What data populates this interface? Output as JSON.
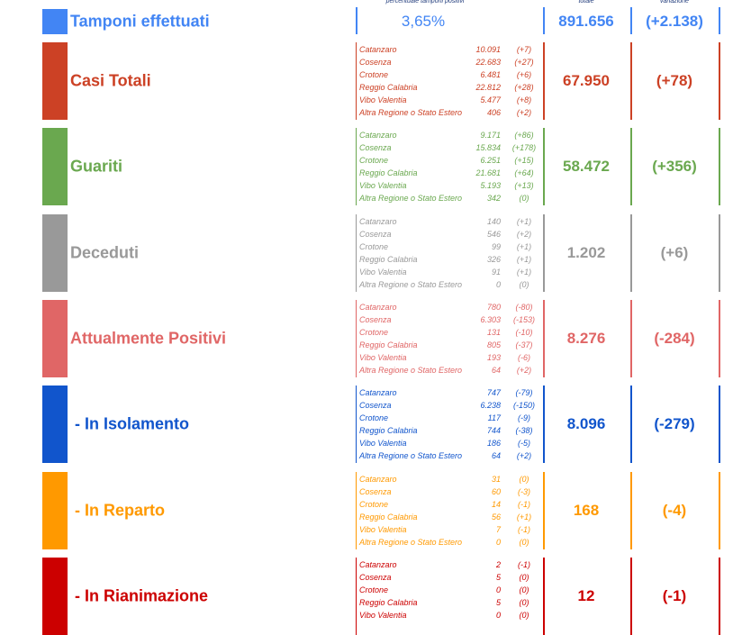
{
  "header": {
    "labels": [
      "percentuale tamponi positivi",
      "totale",
      "variazione"
    ]
  },
  "tamponi": {
    "title": "Tamponi effettuati",
    "percent": "3,65%",
    "total": "891.656",
    "change": "(+2.138)",
    "color": "#4285f4"
  },
  "sections": [
    {
      "title": "Casi Totali",
      "color": "#cc4125",
      "total": "67.950",
      "change": "(+78)",
      "rows": [
        [
          "Catanzaro",
          "10.091",
          "(+7)"
        ],
        [
          "Cosenza",
          "22.683",
          "(+27)"
        ],
        [
          "Crotone",
          "6.481",
          "(+6)"
        ],
        [
          "Reggio Calabria",
          "22.812",
          "(+28)"
        ],
        [
          "Vibo Valentia",
          "5.477",
          "(+8)"
        ],
        [
          "Altra Regione o Stato Estero",
          "406",
          "(+2)"
        ]
      ]
    },
    {
      "title": "Guariti",
      "color": "#6aa84f",
      "total": "58.472",
      "change": "(+356)",
      "rows": [
        [
          "Catanzaro",
          "9.171",
          "(+86)"
        ],
        [
          "Cosenza",
          "15.834",
          "(+178)"
        ],
        [
          "Crotone",
          "6.251",
          "(+15)"
        ],
        [
          "Reggio Calabria",
          "21.681",
          "(+64)"
        ],
        [
          "Vibo Valentia",
          "5.193",
          "(+13)"
        ],
        [
          "Altra Regione o Stato Estero",
          "342",
          "(0)"
        ]
      ]
    },
    {
      "title": "Deceduti",
      "color": "#999999",
      "total": "1.202",
      "change": "(+6)",
      "rows": [
        [
          "Catanzaro",
          "140",
          "(+1)"
        ],
        [
          "Cosenza",
          "546",
          "(+2)"
        ],
        [
          "Crotone",
          "99",
          "(+1)"
        ],
        [
          "Reggio Calabria",
          "326",
          "(+1)"
        ],
        [
          "Vibo Valentia",
          "91",
          "(+1)"
        ],
        [
          "Altra Regione o Stato Estero",
          "0",
          "(0)"
        ]
      ]
    },
    {
      "title": "Attualmente Positivi",
      "color": "#e06666",
      "total": "8.276",
      "change": "(-284)",
      "rows": [
        [
          "Catanzaro",
          "780",
          "(-80)"
        ],
        [
          "Cosenza",
          "6.303",
          "(-153)"
        ],
        [
          "Crotone",
          "131",
          "(-10)"
        ],
        [
          "Reggio Calabria",
          "805",
          "(-37)"
        ],
        [
          "Vibo Valentia",
          "193",
          "(-6)"
        ],
        [
          "Altra Regione o Stato Estero",
          "64",
          "(+2)"
        ]
      ]
    },
    {
      "title": "- In Isolamento",
      "color": "#1155cc",
      "total": "8.096",
      "change": "(-279)",
      "rows": [
        [
          "Catanzaro",
          "747",
          "(-79)"
        ],
        [
          "Cosenza",
          "6.238",
          "(-150)"
        ],
        [
          "Crotone",
          "117",
          "(-9)"
        ],
        [
          "Reggio Calabria",
          "744",
          "(-38)"
        ],
        [
          "Vibo Valentia",
          "186",
          "(-5)"
        ],
        [
          "Altra Regione o Stato Estero",
          "64",
          "(+2)"
        ]
      ]
    },
    {
      "title": "- In Reparto",
      "color": "#ff9900",
      "total": "168",
      "change": "(-4)",
      "rows": [
        [
          "Catanzaro",
          "31",
          "(0)"
        ],
        [
          "Cosenza",
          "60",
          "(-3)"
        ],
        [
          "Crotone",
          "14",
          "(-1)"
        ],
        [
          "Reggio Calabria",
          "56",
          "(+1)"
        ],
        [
          "Vibo Valentia",
          "7",
          "(-1)"
        ],
        [
          "Altra Regione o Stato Estero",
          "0",
          "(0)"
        ]
      ]
    },
    {
      "title": "- In Rianimazione",
      "color": "#cc0000",
      "total": "12",
      "change": "(-1)",
      "rows": [
        [
          "Catanzaro",
          "2",
          "(-1)"
        ],
        [
          "Cosenza",
          "5",
          "(0)"
        ],
        [
          "Crotone",
          "0",
          "(0)"
        ],
        [
          "Reggio Calabria",
          "5",
          "(0)"
        ],
        [
          "Vibo Valentia",
          "0",
          "(0)"
        ]
      ]
    }
  ]
}
